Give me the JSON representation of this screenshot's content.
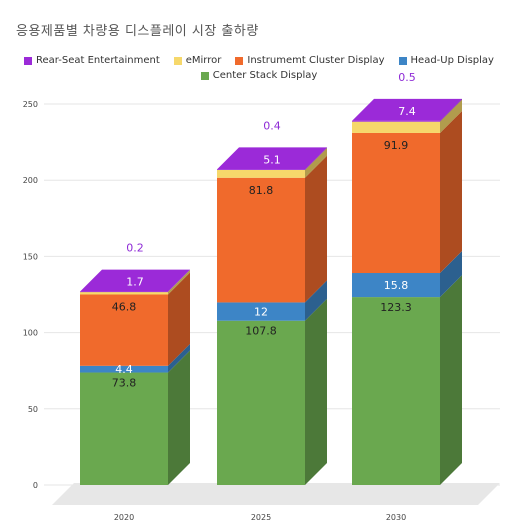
{
  "title": "응용제품별 차량용 디스플레이 시장 출하량",
  "chart_data": {
    "type": "bar",
    "stacked": true,
    "three_d": true,
    "categories": [
      "2020",
      "2025",
      "2030"
    ],
    "series": [
      {
        "name": "Center Stack Display",
        "color": "#6aa84f",
        "values": [
          73.8,
          107.8,
          123.3
        ]
      },
      {
        "name": "Head-Up Display",
        "color": "#3d85c6",
        "values": [
          4.4,
          12,
          15.8
        ]
      },
      {
        "name": "Instrumemt Cluster Display",
        "color": "#f06a2c",
        "values": [
          46.8,
          81.8,
          91.9
        ]
      },
      {
        "name": "eMirror",
        "color": "#f6d86b",
        "values": [
          1.7,
          5.1,
          7.4
        ]
      },
      {
        "name": "Rear-Seat Entertainment",
        "color": "#9b2ad8",
        "values": [
          0.2,
          0.4,
          0.5
        ]
      }
    ],
    "legend_order": [
      "Rear-Seat Entertainment",
      "eMirror",
      "Instrumemt Cluster Display",
      "Head-Up Display",
      "Center Stack Display"
    ],
    "y_ticks": [
      0,
      50,
      100,
      150,
      200,
      250
    ],
    "ylim": [
      0,
      250
    ],
    "legend_position": "top",
    "grid": true
  }
}
